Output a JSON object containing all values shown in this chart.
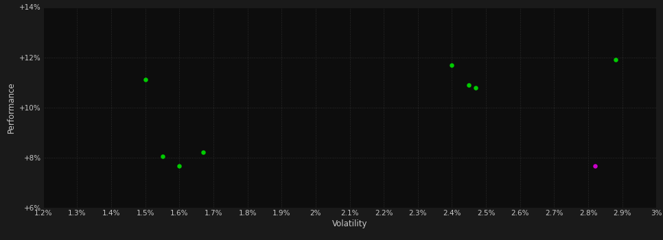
{
  "green_points": [
    [
      1.5,
      11.1
    ],
    [
      1.55,
      8.05
    ],
    [
      1.6,
      7.65
    ],
    [
      1.67,
      8.2
    ],
    [
      2.4,
      11.7
    ],
    [
      2.45,
      10.9
    ],
    [
      2.47,
      10.78
    ],
    [
      2.88,
      11.9
    ]
  ],
  "magenta_points": [
    [
      2.82,
      7.65
    ]
  ],
  "x_ticks": [
    1.2,
    1.3,
    1.4,
    1.5,
    1.6,
    1.7,
    1.8,
    1.9,
    2.0,
    2.1,
    2.2,
    2.3,
    2.4,
    2.5,
    2.6,
    2.7,
    2.8,
    2.9,
    3.0
  ],
  "y_ticks": [
    6,
    8,
    10,
    12,
    14
  ],
  "y_tick_labels": [
    "+6%",
    "+8%",
    "+10%",
    "+12%",
    "+14%"
  ],
  "x_tick_labels": [
    "1.2%",
    "1.3%",
    "1.4%",
    "1.5%",
    "1.6%",
    "1.7%",
    "1.8%",
    "1.9%",
    "2%",
    "2.1%",
    "2.2%",
    "2.3%",
    "2.4%",
    "2.5%",
    "2.6%",
    "2.7%",
    "2.8%",
    "2.9%",
    "3%"
  ],
  "xlim": [
    1.2,
    3.0
  ],
  "ylim": [
    6,
    14
  ],
  "xlabel": "Volatility",
  "ylabel": "Performance",
  "background_color": "#1a1a1a",
  "plot_bg_color": "#0d0d0d",
  "grid_color": "#2e2e2e",
  "text_color": "#c8c8c8",
  "green_color": "#00cc00",
  "magenta_color": "#cc00cc",
  "marker_size": 22
}
